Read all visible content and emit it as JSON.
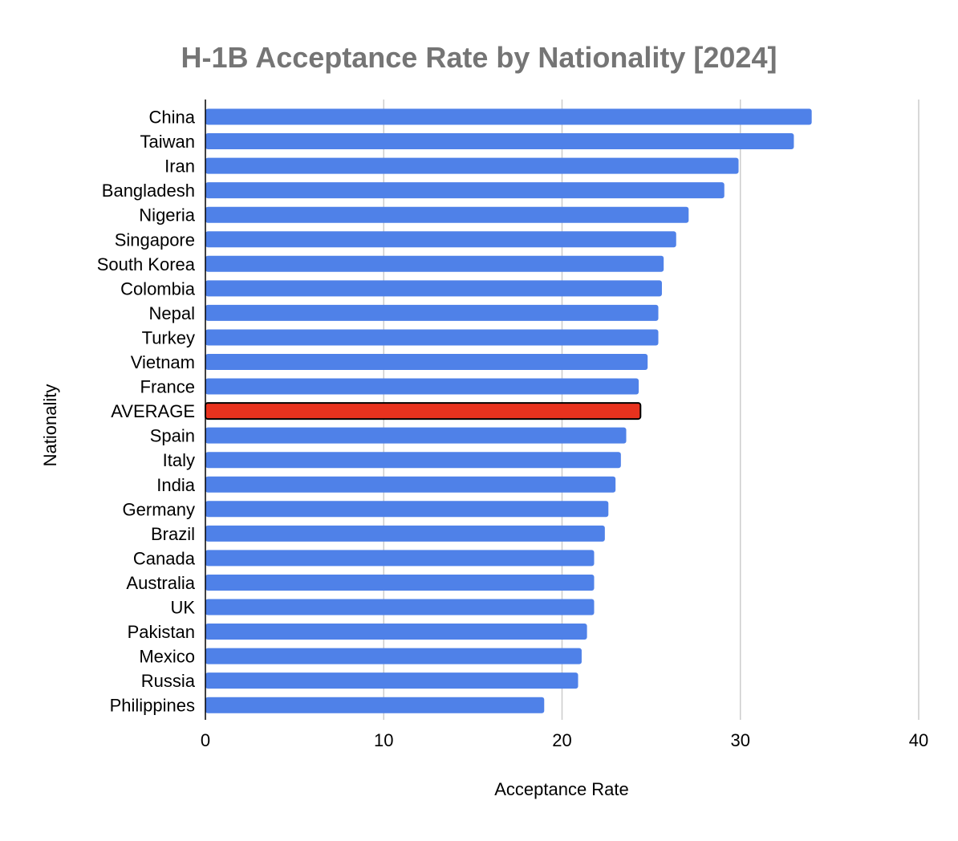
{
  "chart_data": {
    "type": "bar",
    "orientation": "horizontal",
    "title": "H-1B Acceptance Rate by Nationality [2024]",
    "xlabel": "Acceptance Rate",
    "ylabel": "Nationality",
    "xlim": [
      0,
      40
    ],
    "xticks": [
      "0",
      "10",
      "20",
      "30",
      "40"
    ],
    "grid": true,
    "legend": "none",
    "colors": {
      "bar": "#4F81E8",
      "highlight": "#E8321E",
      "highlight_stroke": "#000000",
      "title": "#757575",
      "grid": "#CCCCCC"
    },
    "highlight_category": "AVERAGE",
    "categories": [
      "China",
      "Taiwan",
      "Iran",
      "Bangladesh",
      "Nigeria",
      "Singapore",
      "South Korea",
      "Colombia",
      "Nepal",
      "Turkey",
      "Vietnam",
      "France",
      "AVERAGE",
      "Spain",
      "Italy",
      "India",
      "Germany",
      "Brazil",
      "Canada",
      "Australia",
      "UK",
      "Pakistan",
      "Mexico",
      "Russia",
      "Philippines"
    ],
    "values": [
      34.0,
      33.0,
      29.9,
      29.1,
      27.1,
      26.4,
      25.7,
      25.6,
      25.4,
      25.4,
      24.8,
      24.3,
      24.4,
      23.6,
      23.3,
      23.0,
      22.6,
      22.4,
      21.8,
      21.8,
      21.8,
      21.4,
      21.1,
      20.9,
      19.0
    ]
  }
}
